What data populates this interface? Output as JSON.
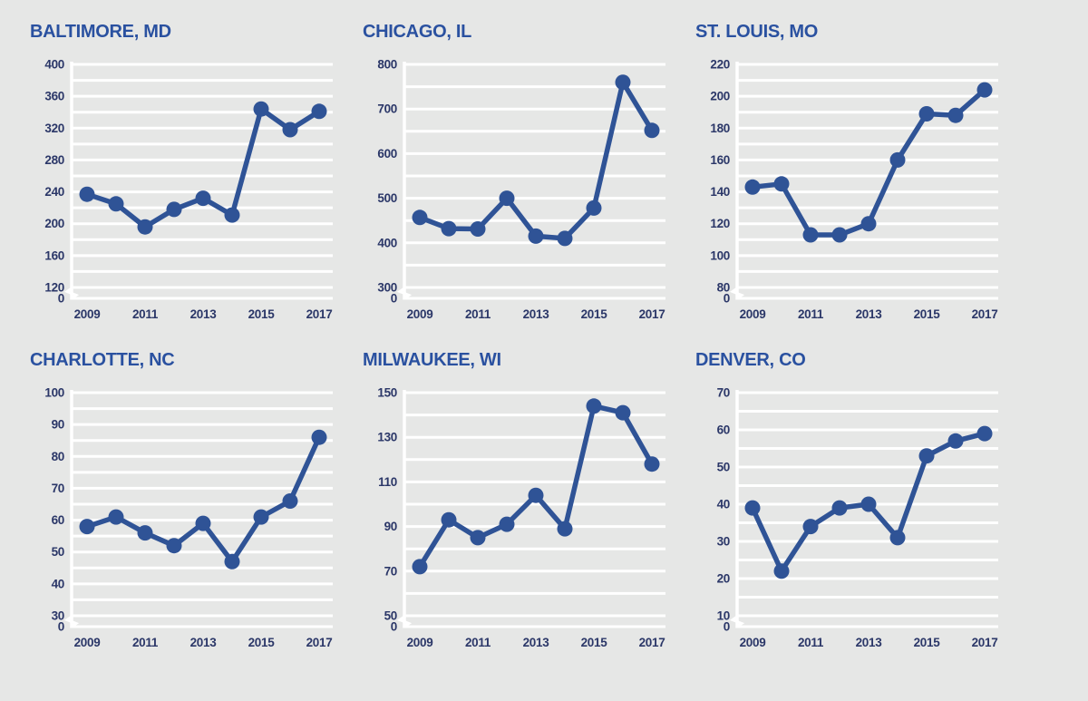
{
  "page": {
    "background": "#E6E7E6",
    "description_years": "2009-2017"
  },
  "style": {
    "line_color": "#2F5396",
    "marker_color": "#2F5396",
    "grid_color": "#FFFFFF",
    "title_color": "#2A51A0",
    "tick_label_color": "#2B3768",
    "zero_label": "0"
  },
  "chart_data": [
    {
      "type": "line",
      "title": "BALTIMORE, MD",
      "x": [
        2009,
        2010,
        2011,
        2012,
        2013,
        2014,
        2015,
        2016,
        2017
      ],
      "xticks": [
        "2009",
        "2011",
        "2013",
        "2015",
        "2017"
      ],
      "values": [
        237,
        225,
        196,
        218,
        232,
        211,
        344,
        318,
        341
      ],
      "yticks": [
        400,
        360,
        320,
        280,
        240,
        200,
        160,
        120
      ],
      "minor_step": 20,
      "ylim": [
        120,
        400
      ],
      "axis_break_to_zero": true,
      "grid": true,
      "legend": "none"
    },
    {
      "type": "line",
      "title": "CHICAGO, IL",
      "x": [
        2009,
        2010,
        2011,
        2012,
        2013,
        2014,
        2015,
        2016,
        2017
      ],
      "xticks": [
        "2009",
        "2011",
        "2013",
        "2015",
        "2017"
      ],
      "values": [
        457,
        432,
        431,
        500,
        415,
        410,
        478,
        760,
        652
      ],
      "yticks": [
        800,
        700,
        600,
        500,
        400,
        300
      ],
      "minor_step": 50,
      "ylim": [
        300,
        800
      ],
      "axis_break_to_zero": true,
      "grid": true,
      "legend": "none"
    },
    {
      "type": "line",
      "title": "ST. LOUIS, MO",
      "x": [
        2009,
        2010,
        2011,
        2012,
        2013,
        2014,
        2015,
        2016,
        2017
      ],
      "xticks": [
        "2009",
        "2011",
        "2013",
        "2015",
        "2017"
      ],
      "values": [
        143,
        145,
        113,
        113,
        120,
        160,
        189,
        188,
        204
      ],
      "yticks": [
        220,
        200,
        180,
        160,
        140,
        120,
        100,
        80
      ],
      "minor_step": 10,
      "ylim": [
        80,
        220
      ],
      "axis_break_to_zero": true,
      "grid": true,
      "legend": "none"
    },
    {
      "type": "line",
      "title": "CHARLOTTE, NC",
      "x": [
        2009,
        2010,
        2011,
        2012,
        2013,
        2014,
        2015,
        2016,
        2017
      ],
      "xticks": [
        "2009",
        "2011",
        "2013",
        "2015",
        "2017"
      ],
      "values": [
        58,
        61,
        56,
        52,
        59,
        47,
        61,
        66,
        86
      ],
      "yticks": [
        100,
        90,
        80,
        70,
        60,
        50,
        40,
        30
      ],
      "minor_step": 5,
      "ylim": [
        30,
        100
      ],
      "axis_break_to_zero": true,
      "grid": true,
      "legend": "none"
    },
    {
      "type": "line",
      "title": "MILWAUKEE, WI",
      "x": [
        2009,
        2010,
        2011,
        2012,
        2013,
        2014,
        2015,
        2016,
        2017
      ],
      "xticks": [
        "2009",
        "2011",
        "2013",
        "2015",
        "2017"
      ],
      "values": [
        72,
        93,
        85,
        91,
        104,
        89,
        144,
        141,
        118
      ],
      "yticks": [
        150,
        130,
        110,
        90,
        70,
        50
      ],
      "minor_step": 10,
      "ylim": [
        50,
        150
      ],
      "axis_break_to_zero": true,
      "grid": true,
      "legend": "none"
    },
    {
      "type": "line",
      "title": "DENVER, CO",
      "x": [
        2009,
        2010,
        2011,
        2012,
        2013,
        2014,
        2015,
        2016,
        2017
      ],
      "xticks": [
        "2009",
        "2011",
        "2013",
        "2015",
        "2017"
      ],
      "values": [
        39,
        22,
        34,
        39,
        40,
        31,
        53,
        57,
        59
      ],
      "yticks": [
        70,
        60,
        50,
        40,
        30,
        20,
        10
      ],
      "minor_step": 5,
      "ylim": [
        10,
        70
      ],
      "axis_break_to_zero": true,
      "grid": true,
      "legend": "none"
    }
  ]
}
